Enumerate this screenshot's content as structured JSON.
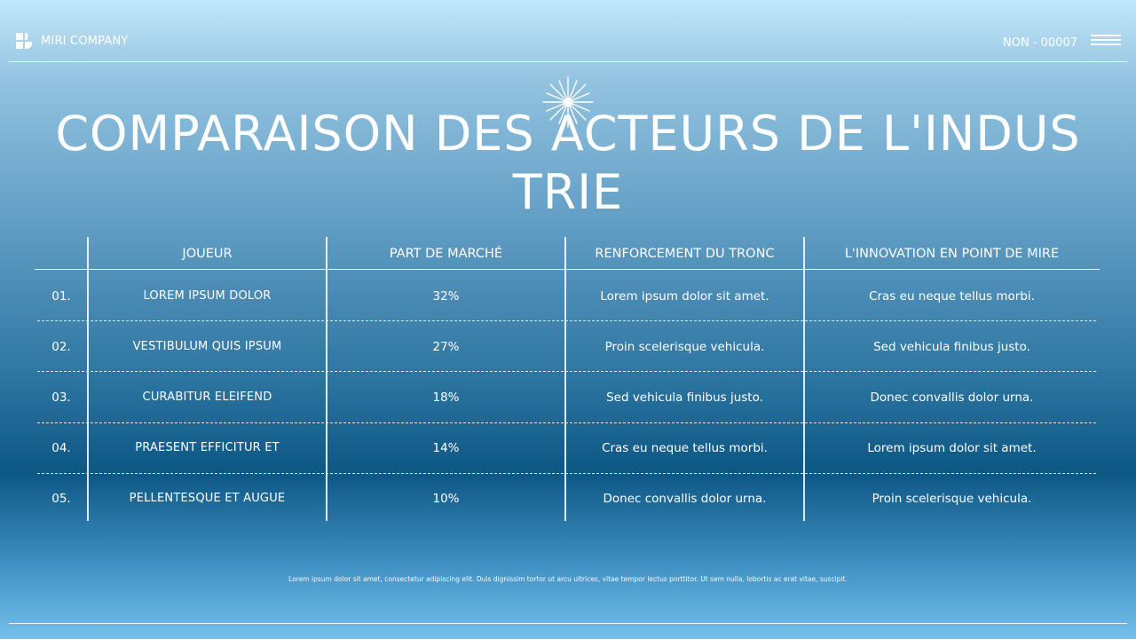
{
  "header": {
    "brand_name": "MIRI COMPANY",
    "reference": "NON - 00007"
  },
  "title": "COMPARAISON DES ACTEURS DE L'INDUSTRIE",
  "table": {
    "columns": [
      "JOUEUR",
      "PART DE MARCHÉ",
      "RENFORCEMENT DU TRONC",
      "L'INNOVATION EN POINT DE MIRE"
    ],
    "rows": [
      {
        "num": "01.",
        "player": "LOREM IPSUM DOLOR",
        "share": "32%",
        "strength": "Lorem ipsum dolor sit amet.",
        "innovation": "Cras eu neque tellus morbi."
      },
      {
        "num": "02.",
        "player": "VESTIBULUM QUIS IPSUM",
        "share": "27%",
        "strength": "Proin scelerisque vehicula.",
        "innovation": "Sed vehicula finibus justo."
      },
      {
        "num": "03.",
        "player": "CURABITUR ELEIFEND",
        "share": "18%",
        "strength": "Sed vehicula finibus justo.",
        "innovation": "Donec convallis dolor urna."
      },
      {
        "num": "04.",
        "player": "PRAESENT EFFICITUR ET",
        "share": "14%",
        "strength": "Cras eu neque tellus morbi.",
        "innovation": "Lorem ipsum dolor sit amet."
      },
      {
        "num": "05.",
        "player": "PELLENTESQUE ET AUGUE",
        "share": "10%",
        "strength": "Donec convallis dolor urna.",
        "innovation": "Proin scelerisque vehicula."
      }
    ]
  },
  "footnote": "Lorem ipsum dolor sit amet, consectetur adipiscing elit. Duis dignissim tortor ut arcu ultrices, vitae tempor lectus porttitor. Ut sem nulla, lobortis ac erat vitae, suscipit.",
  "icons": {
    "brand": "brand-logo-icon",
    "menu": "hamburger-menu-icon",
    "decor": "sparkle-icon"
  }
}
